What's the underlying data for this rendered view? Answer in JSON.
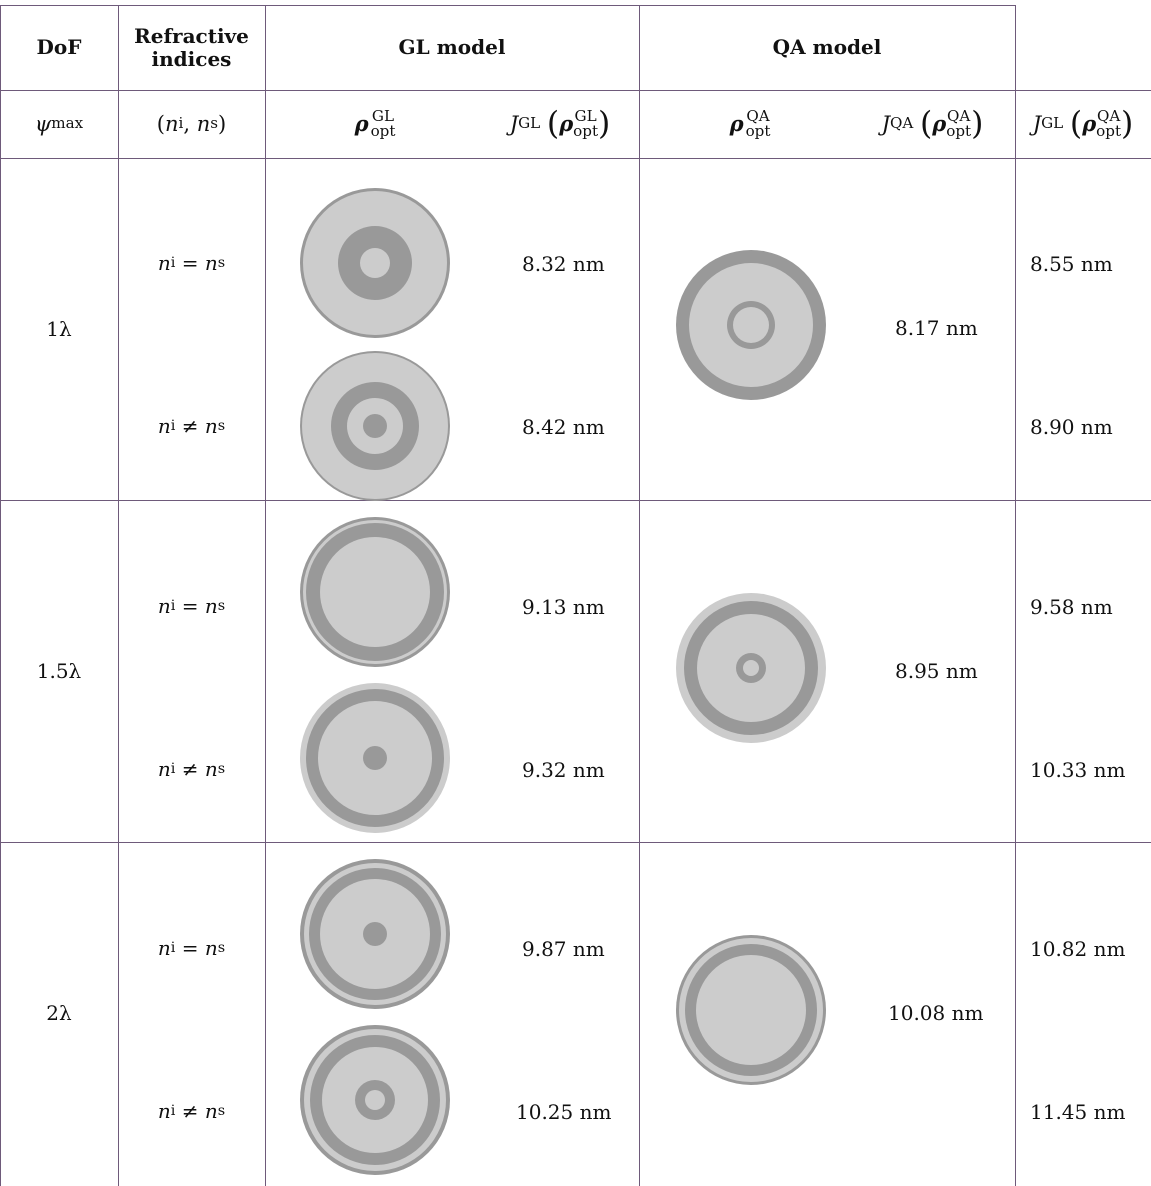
{
  "headers": {
    "dof": "DoF",
    "refractive": "Refractive indices",
    "gl_model": "GL model",
    "qa_model": "QA model"
  },
  "subheaders": {
    "psi": "ψmax",
    "n_pair": "(ni, ns)",
    "rho_gl": "ρoptGL",
    "j_gl": "JGL(ρoptGL)",
    "rho_qa": "ρoptQA",
    "j_qa": "JQA(ρoptQA)",
    "j_gl_qa": "JGL(ρoptQA)"
  },
  "rows": [
    {
      "dof": "1λ",
      "eq_label": "ni = ns",
      "neq_label": "ni ≠ ns",
      "gl_eq": "8.32 nm",
      "gl_neq": "8.42 nm",
      "qa": "8.17 nm",
      "jgl_eq": "8.55 nm",
      "jgl_neq": "8.90 nm"
    },
    {
      "dof": "1.5λ",
      "eq_label": "ni = ns",
      "neq_label": "ni ≠ ns",
      "gl_eq": "9.13 nm",
      "gl_neq": "9.32 nm",
      "qa": "8.95 nm",
      "jgl_eq": "9.58 nm",
      "jgl_neq": "10.33 nm"
    },
    {
      "dof": "2λ",
      "eq_label": "ni = ns",
      "neq_label": "ni ≠ ns",
      "gl_eq": "9.87 nm",
      "gl_neq": "10.25 nm",
      "qa": "10.08 nm",
      "jgl_eq": "10.82 nm",
      "jgl_neq": "11.45 nm"
    }
  ],
  "colors": {
    "dark": "#999999",
    "light": "#cccccc",
    "rule": "#6e5a7a"
  }
}
